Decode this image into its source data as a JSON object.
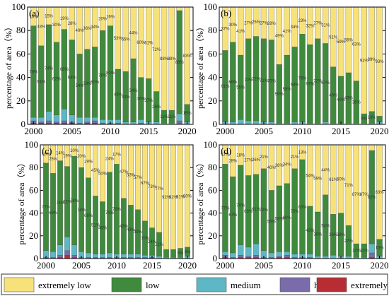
{
  "legend": {
    "entries": [
      {
        "label": "extremely low",
        "color": "#F7E27A"
      },
      {
        "label": "low",
        "color": "#3F8A3C"
      },
      {
        "label": "medium",
        "color": "#5EB7C4"
      },
      {
        "label": "high",
        "color": "#7A6BAA"
      },
      {
        "label": "extremely high",
        "color": "#B72D33"
      }
    ]
  },
  "chart_data": [
    {
      "type": "bar",
      "stacked": true,
      "panel_label": "(a)",
      "ylabel": "percentage of area（%）",
      "ylim": [
        0,
        100
      ],
      "yticks": [
        0,
        20,
        40,
        60,
        80,
        100
      ],
      "xticks": [
        "2000",
        "2005",
        "2010",
        "2015",
        "2020"
      ],
      "categories": [
        "2000",
        "2001",
        "2002",
        "2003",
        "2004",
        "2005",
        "2006",
        "2007",
        "2008",
        "2009",
        "2010",
        "2011",
        "2012",
        "2013",
        "2014",
        "2015",
        "2016",
        "2017",
        "2018",
        "2019",
        "2020"
      ],
      "series": [
        {
          "name": "extremely high",
          "values": [
            1,
            1,
            1,
            1,
            1,
            1,
            0,
            1,
            1,
            0,
            0,
            0,
            0,
            0,
            0,
            0,
            0,
            0,
            0,
            0,
            0
          ]
        },
        {
          "name": "high",
          "values": [
            2,
            1,
            2,
            1,
            2,
            1,
            1,
            1,
            2,
            1,
            1,
            1,
            0,
            0,
            1,
            0,
            0,
            0,
            0,
            3,
            0
          ]
        },
        {
          "name": "medium",
          "values": [
            3,
            4,
            8,
            6,
            10,
            6,
            5,
            4,
            3,
            3,
            3,
            3,
            2,
            2,
            3,
            2,
            2,
            1,
            1,
            6,
            2
          ]
        },
        {
          "name": "low",
          "values": [
            78,
            61,
            74,
            62,
            68,
            64,
            54,
            58,
            60,
            76,
            80,
            43,
            43,
            54,
            36,
            37,
            26,
            11,
            11,
            88,
            15
          ]
        },
        {
          "name": "extremely low",
          "values": [
            16,
            33,
            15,
            30,
            19,
            28,
            40,
            36,
            34,
            20,
            16,
            53,
            55,
            44,
            60,
            61,
            72,
            88,
            88,
            3,
            83
          ]
        }
      ]
    },
    {
      "type": "bar",
      "stacked": true,
      "panel_label": "(b)",
      "ylabel": "percentage of area（%）",
      "ylim": [
        0,
        100
      ],
      "yticks": [
        0,
        20,
        40,
        60,
        80,
        100
      ],
      "xticks": [
        "2000",
        "2005",
        "2010",
        "2015",
        "2020"
      ],
      "categories": [
        "2000",
        "2001",
        "2002",
        "2003",
        "2004",
        "2005",
        "2006",
        "2007",
        "2008",
        "2009",
        "2010",
        "2011",
        "2012",
        "2013",
        "2014",
        "2015",
        "2016",
        "2017",
        "2018",
        "2019",
        "2020"
      ],
      "series": [
        {
          "name": "extremely high",
          "values": [
            0,
            0,
            0,
            0,
            0,
            0,
            0,
            0,
            0,
            0,
            0,
            0,
            0,
            0,
            0,
            0,
            0,
            0,
            0,
            0,
            0
          ]
        },
        {
          "name": "high",
          "values": [
            0,
            0,
            0,
            0,
            0,
            0,
            0,
            0,
            0,
            0,
            0,
            0,
            0,
            0,
            0,
            0,
            0,
            0,
            0,
            0,
            0
          ]
        },
        {
          "name": "medium",
          "values": [
            2,
            2,
            4,
            3,
            3,
            2,
            2,
            1,
            1,
            2,
            2,
            1,
            1,
            2,
            1,
            1,
            1,
            1,
            1,
            1,
            2
          ]
        },
        {
          "name": "low",
          "values": [
            61,
            68,
            55,
            70,
            72,
            71,
            70,
            50,
            58,
            64,
            75,
            67,
            72,
            67,
            48,
            40,
            43,
            36,
            8,
            10,
            5
          ]
        },
        {
          "name": "extremely low",
          "values": [
            37,
            30,
            41,
            27,
            25,
            27,
            28,
            49,
            41,
            34,
            23,
            32,
            27,
            31,
            51,
            59,
            56,
            63,
            91,
            89,
            93
          ]
        }
      ]
    },
    {
      "type": "bar",
      "stacked": true,
      "panel_label": "(c)",
      "ylabel": "percentage of area（%）",
      "ylim": [
        0,
        100
      ],
      "yticks": [
        0,
        20,
        40,
        60,
        80,
        100
      ],
      "xticks": [
        "2000",
        "2005",
        "2010",
        "2015",
        "2020"
      ],
      "categories": [
        "2000",
        "2001",
        "2002",
        "2003",
        "2004",
        "2005",
        "2006",
        "2007",
        "2008",
        "2009",
        "2010",
        "2011",
        "2012",
        "2013",
        "2014",
        "2015",
        "2016",
        "2017",
        "2018",
        "2019",
        "2020"
      ],
      "series": [
        {
          "name": "extremely high",
          "values": [
            0,
            0,
            1,
            3,
            1,
            0,
            0,
            0,
            0,
            0,
            0,
            0,
            0,
            0,
            0,
            0,
            0,
            0,
            0,
            0,
            0
          ]
        },
        {
          "name": "high",
          "values": [
            1,
            1,
            2,
            4,
            2,
            1,
            1,
            1,
            1,
            1,
            1,
            1,
            1,
            1,
            1,
            1,
            0,
            0,
            0,
            0,
            0
          ]
        },
        {
          "name": "medium",
          "values": [
            6,
            5,
            9,
            12,
            9,
            5,
            4,
            3,
            3,
            4,
            3,
            3,
            3,
            3,
            2,
            2,
            2,
            1,
            1,
            1,
            2
          ]
        },
        {
          "name": "low",
          "values": [
            77,
            69,
            74,
            62,
            78,
            74,
            66,
            51,
            46,
            71,
            79,
            49,
            43,
            39,
            30,
            24,
            21,
            7,
            7,
            8,
            8
          ]
        },
        {
          "name": "extremely low",
          "values": [
            16,
            25,
            14,
            19,
            10,
            20,
            29,
            45,
            50,
            24,
            17,
            47,
            53,
            57,
            67,
            73,
            77,
            92,
            92,
            91,
            90
          ]
        }
      ]
    },
    {
      "type": "bar",
      "stacked": true,
      "panel_label": "(d)",
      "ylabel": "percentage of area（%）",
      "ylim": [
        0,
        100
      ],
      "yticks": [
        0,
        20,
        40,
        60,
        80,
        100
      ],
      "xticks": [
        "2000",
        "2005",
        "2010",
        "2015",
        "2020"
      ],
      "categories": [
        "2000",
        "2001",
        "2002",
        "2003",
        "2004",
        "2005",
        "2006",
        "2007",
        "2008",
        "2009",
        "2010",
        "2011",
        "2012",
        "2013",
        "2014",
        "2015",
        "2016",
        "2017",
        "2018",
        "2019",
        "2020"
      ],
      "series": [
        {
          "name": "extremely high",
          "values": [
            1,
            0,
            1,
            1,
            1,
            0,
            0,
            1,
            1,
            0,
            0,
            0,
            0,
            0,
            0,
            0,
            0,
            0,
            0,
            1,
            0
          ]
        },
        {
          "name": "high",
          "values": [
            2,
            1,
            2,
            1,
            2,
            1,
            1,
            1,
            2,
            1,
            1,
            1,
            0,
            0,
            0,
            0,
            0,
            0,
            0,
            4,
            0
          ]
        },
        {
          "name": "medium",
          "values": [
            3,
            4,
            9,
            8,
            10,
            6,
            4,
            4,
            3,
            3,
            3,
            3,
            2,
            2,
            3,
            2,
            2,
            1,
            1,
            8,
            2
          ]
        },
        {
          "name": "low",
          "values": [
            77,
            67,
            70,
            63,
            61,
            72,
            55,
            58,
            60,
            75,
            83,
            42,
            39,
            54,
            36,
            38,
            27,
            12,
            12,
            82,
            15
          ]
        },
        {
          "name": "extremely low",
          "values": [
            17,
            28,
            18,
            27,
            26,
            21,
            40,
            36,
            34,
            21,
            13,
            54,
            59,
            44,
            61,
            60,
            71,
            87,
            87,
            5,
            83
          ]
        }
      ]
    }
  ]
}
